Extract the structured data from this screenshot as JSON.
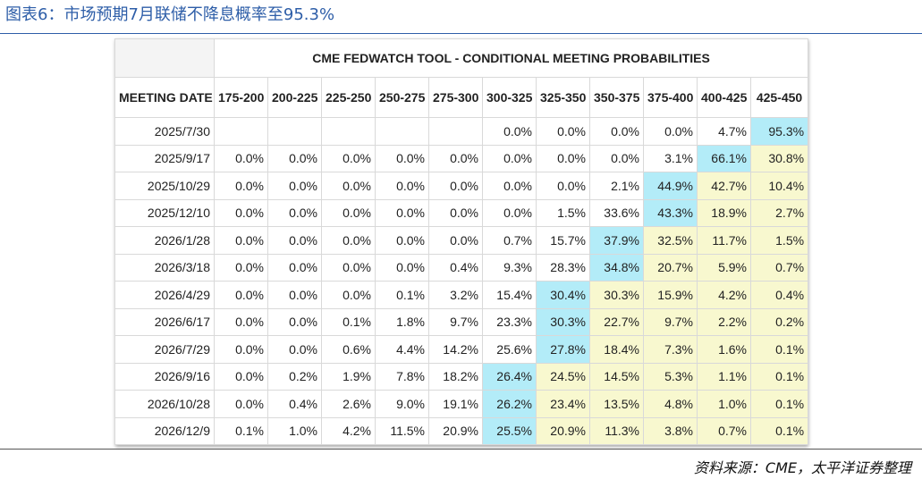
{
  "figure": {
    "title": "图表6：市场预期7月联储不降息概率至95.3%",
    "source": "资料来源：CME，太平洋证券整理"
  },
  "colors": {
    "title_blue": "#2e5ea8",
    "highlight_max": "#b3ecf8",
    "highlight_above": "#f8f8cf"
  },
  "chart_data": {
    "type": "table",
    "title": "CME FEDWATCH TOOL - CONDITIONAL MEETING PROBABILITIES",
    "row_header": "MEETING DATE",
    "columns": [
      "175-200",
      "200-225",
      "225-250",
      "250-275",
      "275-300",
      "300-325",
      "325-350",
      "350-375",
      "375-400",
      "400-425",
      "425-450"
    ],
    "rows": [
      {
        "date": "2025/7/30",
        "values": [
          "",
          "",
          "",
          "",
          "",
          "0.0%",
          "0.0%",
          "0.0%",
          "0.0%",
          "4.7%",
          "95.3%"
        ]
      },
      {
        "date": "2025/9/17",
        "values": [
          "0.0%",
          "0.0%",
          "0.0%",
          "0.0%",
          "0.0%",
          "0.0%",
          "0.0%",
          "0.0%",
          "3.1%",
          "66.1%",
          "30.8%"
        ]
      },
      {
        "date": "2025/10/29",
        "values": [
          "0.0%",
          "0.0%",
          "0.0%",
          "0.0%",
          "0.0%",
          "0.0%",
          "0.0%",
          "2.1%",
          "44.9%",
          "42.7%",
          "10.4%"
        ]
      },
      {
        "date": "2025/12/10",
        "values": [
          "0.0%",
          "0.0%",
          "0.0%",
          "0.0%",
          "0.0%",
          "0.0%",
          "1.5%",
          "33.6%",
          "43.3%",
          "18.9%",
          "2.7%"
        ]
      },
      {
        "date": "2026/1/28",
        "values": [
          "0.0%",
          "0.0%",
          "0.0%",
          "0.0%",
          "0.0%",
          "0.7%",
          "15.7%",
          "37.9%",
          "32.5%",
          "11.7%",
          "1.5%"
        ]
      },
      {
        "date": "2026/3/18",
        "values": [
          "0.0%",
          "0.0%",
          "0.0%",
          "0.0%",
          "0.4%",
          "9.3%",
          "28.3%",
          "34.8%",
          "20.7%",
          "5.9%",
          "0.7%"
        ]
      },
      {
        "date": "2026/4/29",
        "values": [
          "0.0%",
          "0.0%",
          "0.0%",
          "0.1%",
          "3.2%",
          "15.4%",
          "30.4%",
          "30.3%",
          "15.9%",
          "4.2%",
          "0.4%"
        ]
      },
      {
        "date": "2026/6/17",
        "values": [
          "0.0%",
          "0.0%",
          "0.1%",
          "1.8%",
          "9.7%",
          "23.3%",
          "30.3%",
          "22.7%",
          "9.7%",
          "2.2%",
          "0.2%"
        ]
      },
      {
        "date": "2026/7/29",
        "values": [
          "0.0%",
          "0.0%",
          "0.6%",
          "4.4%",
          "14.2%",
          "25.6%",
          "27.8%",
          "18.4%",
          "7.3%",
          "1.6%",
          "0.1%"
        ]
      },
      {
        "date": "2026/9/16",
        "values": [
          "0.0%",
          "0.2%",
          "1.9%",
          "7.8%",
          "18.2%",
          "26.4%",
          "24.5%",
          "14.5%",
          "5.3%",
          "1.1%",
          "0.1%"
        ]
      },
      {
        "date": "2026/10/28",
        "values": [
          "0.0%",
          "0.4%",
          "2.6%",
          "9.0%",
          "19.1%",
          "26.2%",
          "23.4%",
          "13.5%",
          "4.8%",
          "1.0%",
          "0.1%"
        ]
      },
      {
        "date": "2026/12/9",
        "values": [
          "0.1%",
          "1.0%",
          "4.2%",
          "11.5%",
          "20.9%",
          "25.5%",
          "20.9%",
          "11.3%",
          "3.8%",
          "0.7%",
          "0.1%"
        ]
      }
    ],
    "highlight": {
      "max_cell_col_index": [
        10,
        9,
        8,
        8,
        7,
        7,
        6,
        6,
        6,
        5,
        5,
        5
      ]
    }
  }
}
